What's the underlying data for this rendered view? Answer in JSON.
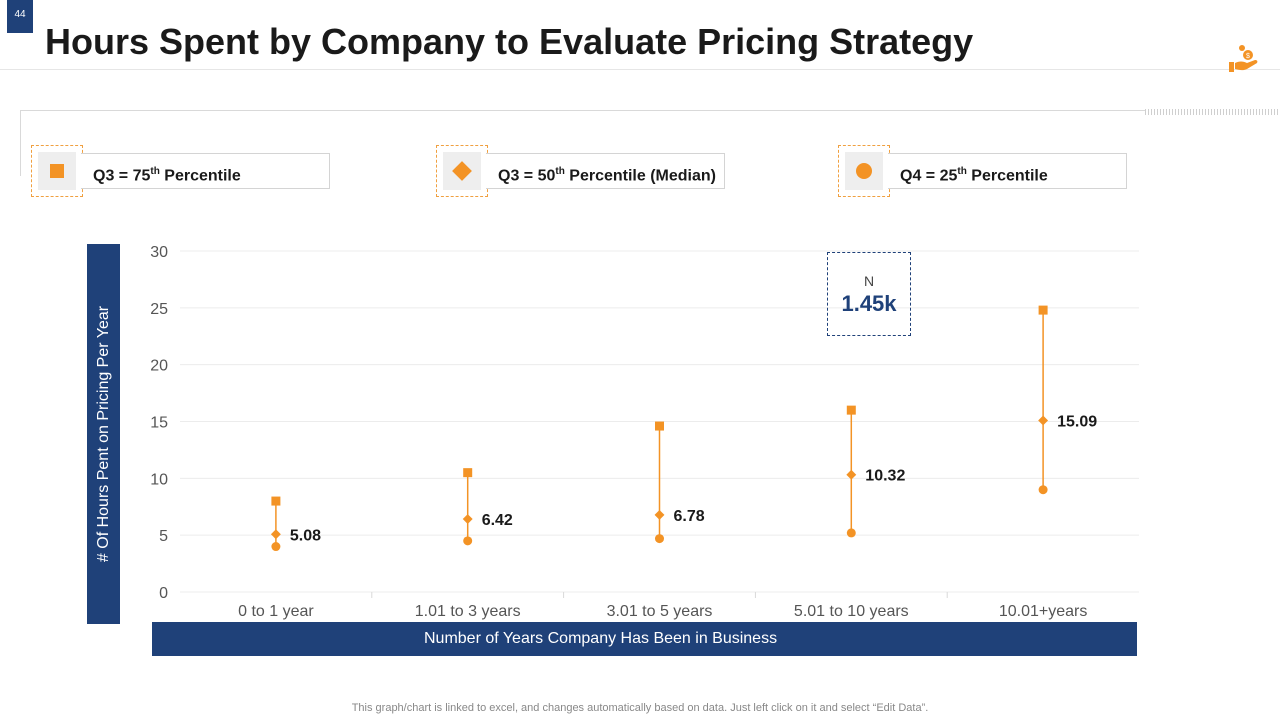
{
  "slide_number": "44",
  "title": "Hours Spent by Company to Evaluate Pricing Strategy",
  "legend": [
    {
      "prefix": "Q3 = 75",
      "sup": "th",
      "suffix": " Percentile",
      "marker": "square"
    },
    {
      "prefix": "Q3 = 50",
      "sup": "th",
      "suffix": " Percentile (Median)",
      "marker": "diamond"
    },
    {
      "prefix": "Q4 = 25",
      "sup": "th",
      "suffix": " Percentile",
      "marker": "circle"
    }
  ],
  "n_box": {
    "label": "N",
    "value": "1.45k"
  },
  "footer": "This graph/chart is linked to excel,  and changes automatically based on data. Just left click on it and select “Edit Data”.",
  "colors": {
    "accent": "#f39325",
    "navy": "#1f4179"
  },
  "chart_data": {
    "type": "scatter",
    "title": "Hours Spent by Company to Evaluate Pricing Strategy",
    "xlabel": "Number of Years Company Has Been in Business",
    "ylabel": "# Of Hours Pent on Pricing Per Year",
    "categories": [
      "0 to 1 year",
      "1.01 to 3 years",
      "3.01 to 5 years",
      "5.01 to 10 years",
      "10.01+years"
    ],
    "yticks": [
      "0",
      "5",
      "10",
      "15",
      "20",
      "25",
      "30"
    ],
    "ylim": [
      0,
      30
    ],
    "series": [
      {
        "name": "Q3 = 75th Percentile",
        "marker": "square",
        "values": [
          8,
          10.5,
          14.6,
          16,
          24.8
        ]
      },
      {
        "name": "Q3 = 50th Percentile (Median)",
        "marker": "diamond",
        "values": [
          5.08,
          6.42,
          6.78,
          10.32,
          15.09
        ]
      },
      {
        "name": "Q4 = 25th Percentile",
        "marker": "circle",
        "values": [
          4,
          4.5,
          4.7,
          5.2,
          9
        ]
      }
    ],
    "median_labels": [
      "5.08",
      "6.42",
      "6.78",
      "10.32",
      "15.09"
    ]
  }
}
